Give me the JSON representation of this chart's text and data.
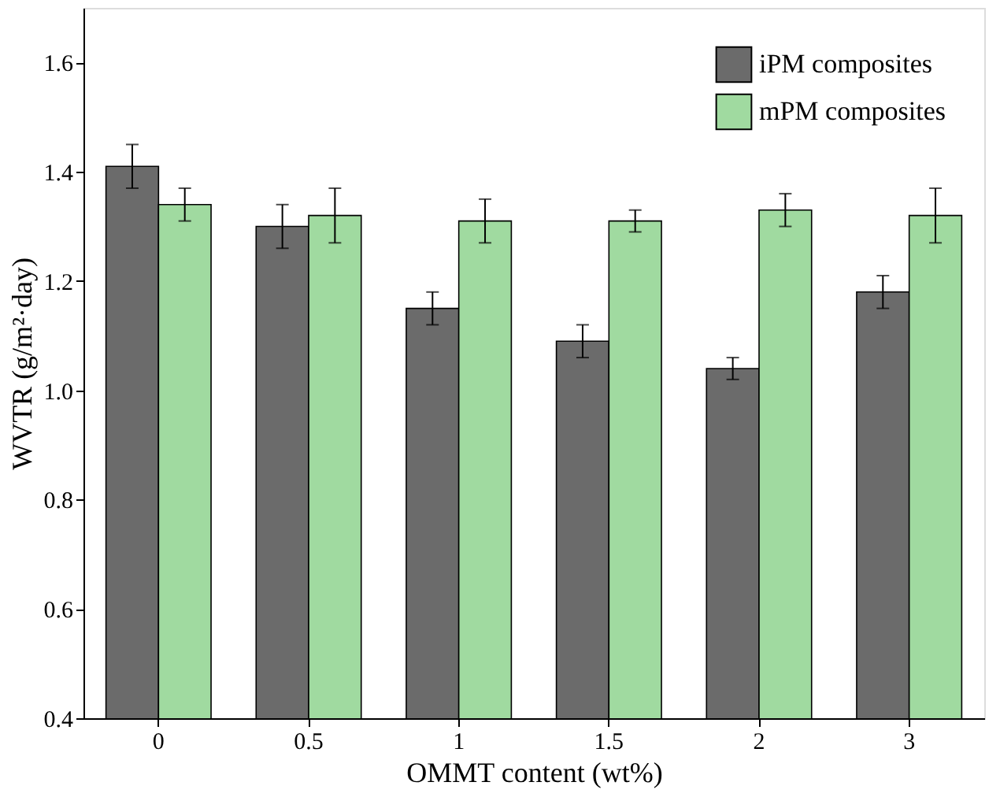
{
  "chart_data": {
    "type": "bar",
    "xlabel": "OMMT content (wt%)",
    "ylabel": "WVTR (g/m²·day)",
    "categories": [
      "0",
      "0.5",
      "1",
      "1.5",
      "2",
      "3"
    ],
    "series": [
      {
        "name": "iPM composites",
        "color": "#6b6b6b",
        "values": [
          1.41,
          1.3,
          1.15,
          1.09,
          1.04,
          1.18
        ],
        "errors": [
          0.04,
          0.04,
          0.03,
          0.03,
          0.02,
          0.03
        ]
      },
      {
        "name": "mPM composites",
        "color": "#a0daa0",
        "values": [
          1.34,
          1.32,
          1.31,
          1.31,
          1.33,
          1.32
        ],
        "errors": [
          0.03,
          0.05,
          0.04,
          0.02,
          0.03,
          0.05
        ]
      }
    ],
    "ylim": [
      0.4,
      1.7
    ],
    "yticks": [
      0.4,
      0.6,
      0.8,
      {
        "value": 1.0,
        "label": "1.0"
      },
      1.2,
      1.4,
      1.6
    ],
    "grid": false,
    "legend": "top right"
  }
}
